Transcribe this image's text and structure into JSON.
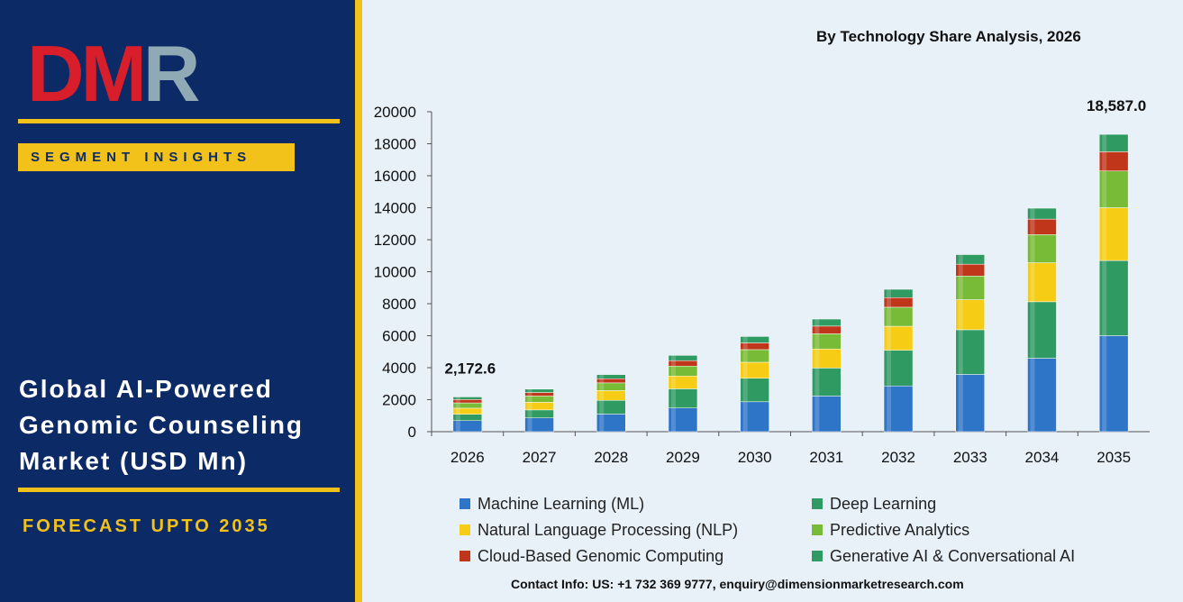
{
  "brand": {
    "logo_d": "D",
    "logo_m": "M",
    "logo_r": "R"
  },
  "badge": "SEGMENT INSIGHTS",
  "title": "Global AI-Powered Genomic Counseling Market (USD Mn)",
  "forecast": "FORECAST UPTO 2035",
  "contact": "Contact Info: US: +1 732 369 9777, enquiry@dimensionmarketresearch.com",
  "colors": {
    "panel_bg": "#0b2a66",
    "gold": "#f2c21b",
    "page_bg": "#e8f0f8"
  },
  "chart_data": {
    "type": "bar",
    "stacked": true,
    "title": "By Technology Share Analysis, 2026",
    "categories": [
      "2026",
      "2027",
      "2028",
      "2029",
      "2030",
      "2031",
      "2032",
      "2033",
      "2034",
      "2035"
    ],
    "ylim": [
      0,
      20000
    ],
    "yticks": [
      0,
      2000,
      4000,
      6000,
      8000,
      10000,
      12000,
      14000,
      16000,
      18000,
      20000
    ],
    "grid": false,
    "legend_position": "bottom",
    "series": [
      {
        "name": "Machine Learning (ML)",
        "color": "#2e75c8",
        "values": [
          690,
          860,
          1100,
          1480,
          1870,
          2230,
          2860,
          3580,
          4590,
          6000
        ]
      },
      {
        "name": "Deep Learning",
        "color": "#2f9a62",
        "values": [
          400,
          500,
          860,
          1200,
          1470,
          1750,
          2230,
          2790,
          3530,
          4700
        ]
      },
      {
        "name": "Natural Language Processing (NLP)",
        "color": "#f6cc14",
        "values": [
          380,
          480,
          610,
          800,
          1000,
          1190,
          1500,
          1880,
          2440,
          3300
        ]
      },
      {
        "name": "Predictive Analytics",
        "color": "#78bb36",
        "values": [
          330,
          390,
          480,
          620,
          790,
          950,
          1190,
          1480,
          1760,
          2300
        ]
      },
      {
        "name": "Cloud-Based Genomic Computing",
        "color": "#c0361b",
        "values": [
          210,
          220,
          260,
          340,
          420,
          480,
          600,
          740,
          970,
          1200
        ]
      },
      {
        "name": "Generative AI & Conversational AI",
        "color": "#2f9a62",
        "values": [
          163,
          210,
          260,
          330,
          400,
          440,
          520,
          600,
          680,
          1087
        ]
      }
    ],
    "data_labels": [
      {
        "category": "2026",
        "text": "2,172.6"
      },
      {
        "category": "2035",
        "text": "18,587.0"
      }
    ]
  }
}
